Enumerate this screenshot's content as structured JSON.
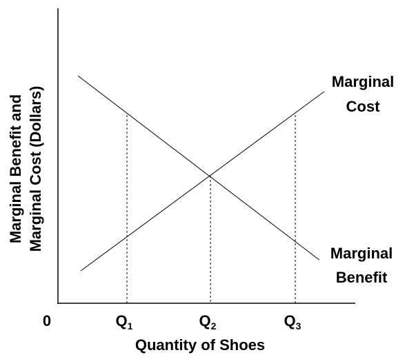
{
  "diagram": {
    "y_axis_label": [
      "Marginal Benefit and",
      "Marginal Cost (Dollars)"
    ],
    "x_axis_label": "Quantity of Shoes",
    "origin_label": "0",
    "x_marks": [
      {
        "base": "Q",
        "sub": "1"
      },
      {
        "base": "Q",
        "sub": "2"
      },
      {
        "base": "Q",
        "sub": "3"
      }
    ],
    "curves": [
      {
        "label": [
          "Marginal",
          "Cost"
        ]
      },
      {
        "label": [
          "Marginal",
          "Benefit"
        ]
      }
    ]
  }
}
